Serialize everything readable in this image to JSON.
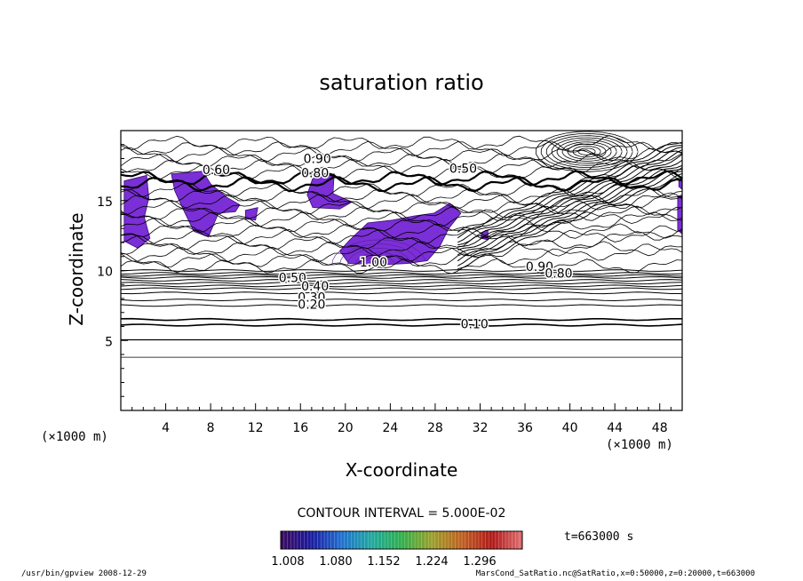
{
  "chart_data": {
    "type": "contour",
    "title": "saturation ratio",
    "xlabel": "X-coordinate",
    "ylabel": "Z-coordinate",
    "x_units": "(×1000 m)",
    "y_units": "(×1000 m)",
    "xlim": [
      0,
      50
    ],
    "ylim": [
      0,
      20
    ],
    "x_ticks": [
      4,
      8,
      12,
      16,
      20,
      24,
      28,
      32,
      36,
      40,
      44,
      48
    ],
    "y_ticks": [
      5,
      10,
      15
    ],
    "contour_interval_text": "CONTOUR INTERVAL = 5.000E-02",
    "contour_labels": [
      {
        "text": "0.90",
        "x": 17.5,
        "z": 18.0
      },
      {
        "text": "0.80",
        "x": 17.3,
        "z": 17.0
      },
      {
        "text": "0.50",
        "x": 30.5,
        "z": 17.3
      },
      {
        "text": "0.60",
        "x": 8.5,
        "z": 17.2
      },
      {
        "text": "1.00",
        "x": 22.5,
        "z": 10.6
      },
      {
        "text": "0.90",
        "x": 37.3,
        "z": 10.3
      },
      {
        "text": "0.80",
        "x": 39.0,
        "z": 9.8
      },
      {
        "text": "0.50",
        "x": 15.3,
        "z": 9.5
      },
      {
        "text": "0.40",
        "x": 17.3,
        "z": 8.9
      },
      {
        "text": "0.30",
        "x": 17.0,
        "z": 8.1
      },
      {
        "text": "0.20",
        "x": 17.0,
        "z": 7.6
      },
      {
        "text": "0.10",
        "x": 31.5,
        "z": 6.2
      }
    ],
    "colorbar": {
      "tick_labels": [
        "1.008",
        "1.080",
        "1.152",
        "1.224",
        "1.296"
      ],
      "colors": [
        "#3a0a5c",
        "#1a1a9e",
        "#1f6fd0",
        "#1fa8a0",
        "#2fb04a",
        "#9aa02a",
        "#c06020",
        "#b01818",
        "#e07070"
      ]
    },
    "supersaturated_fill_color": "#7b2fd6",
    "time_label": "t=663000 s"
  },
  "footer": {
    "left": "/usr/bin/gpview   2008-12-29",
    "right": "MarsCond_SatRatio.nc@SatRatio,x=0:50000,z=0:20000,t=663000"
  }
}
